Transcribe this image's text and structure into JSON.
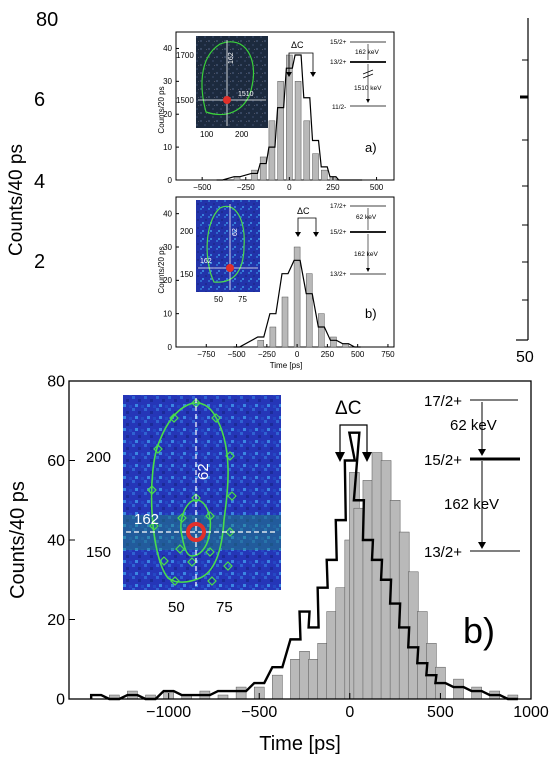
{
  "chart_data": [
    {
      "type": "bar",
      "panel_label": "a)",
      "xlabel": "",
      "ylabel": "Counts/20 ps",
      "xlim": [
        -650,
        600
      ],
      "ylim": [
        0,
        45
      ],
      "xticks": [
        "-500",
        "-250",
        "0",
        "250",
        "500"
      ],
      "yticks": [
        "0",
        "10",
        "20",
        "30",
        "40"
      ],
      "annotation": "ΔC",
      "level_scheme": {
        "levels": [
          "15/2+",
          "13/2+",
          "11/2-"
        ],
        "transitions": [
          "162 keV",
          "1510 keV"
        ]
      },
      "inset": {
        "y_ticks": [
          "1500",
          "1700"
        ],
        "x_ticks": [
          "100",
          "200"
        ],
        "cross_labels": [
          "162",
          "1510"
        ]
      },
      "series": [
        {
          "style": "filled grey",
          "x": [
            -400,
            -300,
            -200,
            -150,
            -100,
            -50,
            0,
            50,
            100,
            150,
            200,
            250,
            300,
            400
          ],
          "values": [
            0,
            1,
            3,
            7,
            18,
            30,
            38,
            30,
            18,
            8,
            3,
            1,
            0,
            0
          ]
        },
        {
          "style": "black line",
          "x": [
            -400,
            -300,
            -200,
            -150,
            -100,
            -50,
            0,
            50,
            100,
            150,
            200,
            250,
            300,
            400
          ],
          "values": [
            0,
            1,
            2,
            5,
            10,
            22,
            34,
            38,
            25,
            12,
            4,
            1,
            0,
            0
          ]
        }
      ]
    },
    {
      "type": "bar",
      "panel_label": "b)",
      "xlabel": "Time [ps]",
      "ylabel": "Counts/20 ps",
      "xlim": [
        -1000,
        800
      ],
      "ylim": [
        0,
        45
      ],
      "xticks": [
        "-750",
        "-500",
        "-250",
        "0",
        "250",
        "500",
        "750"
      ],
      "yticks": [
        "0",
        "10",
        "20",
        "30",
        "40"
      ],
      "annotation": "ΔC",
      "level_scheme": {
        "levels": [
          "17/2+",
          "15/2+",
          "13/2+"
        ],
        "transitions": [
          "62 keV",
          "162 keV"
        ]
      },
      "inset": {
        "y_ticks": [
          "150",
          "200"
        ],
        "x_ticks": [
          "50",
          "75"
        ],
        "cross_labels": [
          "162",
          "62"
        ]
      },
      "series": [
        {
          "style": "filled grey",
          "x": [
            -500,
            -300,
            -200,
            -100,
            0,
            100,
            200,
            300,
            400,
            500
          ],
          "values": [
            0,
            2,
            6,
            15,
            30,
            22,
            10,
            3,
            1,
            0
          ]
        },
        {
          "style": "black line",
          "x": [
            -500,
            -300,
            -200,
            -100,
            0,
            100,
            200,
            300,
            400,
            500
          ],
          "values": [
            0,
            3,
            10,
            22,
            26,
            16,
            6,
            2,
            1,
            0
          ]
        }
      ]
    },
    {
      "type": "bar",
      "panel_label": "b)",
      "xlabel": "Time [ps]",
      "ylabel": "Counts/40 ps",
      "xlim": [
        -1550,
        1000
      ],
      "ylim": [
        0,
        80
      ],
      "xticks": [
        "-1000",
        "-500",
        "0",
        "500",
        "1000"
      ],
      "yticks": [
        "0",
        "20",
        "40",
        "60",
        "80"
      ],
      "annotation": "ΔC",
      "level_scheme": {
        "levels": [
          "17/2+",
          "15/2+",
          "13/2+"
        ],
        "transitions": [
          "62 keV",
          "162 keV"
        ]
      },
      "inset": {
        "y_ticks": [
          "150",
          "200"
        ],
        "x_ticks": [
          "50",
          "75"
        ],
        "cross_labels": [
          "162",
          "62"
        ]
      },
      "series": [
        {
          "style": "filled grey",
          "x": [
            -1400,
            -1300,
            -1200,
            -1100,
            -1000,
            -900,
            -800,
            -700,
            -600,
            -500,
            -400,
            -300,
            -250,
            -200,
            -150,
            -100,
            -50,
            0,
            25,
            50,
            100,
            150,
            200,
            250,
            300,
            350,
            400,
            450,
            500,
            600,
            700,
            800,
            900
          ],
          "values": [
            0,
            1,
            2,
            1,
            2,
            1,
            2,
            1,
            3,
            3,
            6,
            10,
            12,
            10,
            14,
            22,
            28,
            40,
            57,
            48,
            55,
            62,
            60,
            50,
            42,
            32,
            22,
            14,
            8,
            5,
            3,
            2,
            1
          ]
        },
        {
          "style": "black line",
          "x": [
            -1400,
            -1300,
            -1200,
            -1100,
            -1000,
            -900,
            -800,
            -700,
            -600,
            -500,
            -400,
            -300,
            -250,
            -200,
            -150,
            -100,
            -50,
            0,
            25,
            50,
            100,
            150,
            200,
            250,
            300,
            350,
            400,
            450,
            500,
            600,
            700,
            800,
            900
          ],
          "values": [
            1,
            0,
            1,
            0,
            2,
            1,
            1,
            2,
            2,
            4,
            8,
            15,
            22,
            18,
            28,
            35,
            45,
            60,
            67,
            50,
            40,
            35,
            30,
            24,
            18,
            13,
            9,
            6,
            4,
            3,
            2,
            1,
            0
          ]
        }
      ]
    }
  ],
  "side": {
    "y_top": "80",
    "y_labels": [
      "6",
      "4",
      "2"
    ],
    "ylabel": "Counts/40 ps",
    "right_label": "50"
  }
}
